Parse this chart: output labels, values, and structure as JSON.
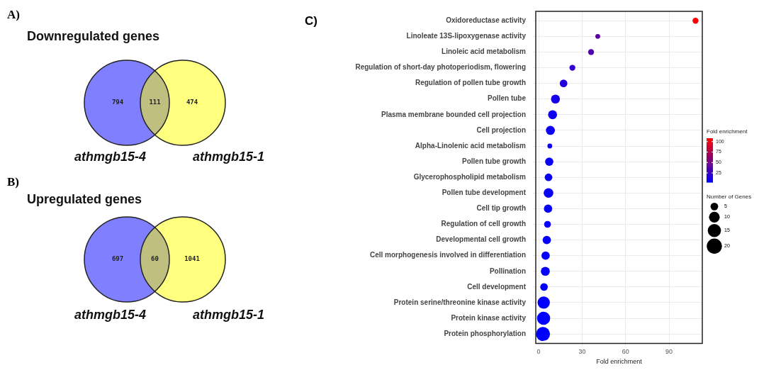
{
  "chart_data": [
    {
      "type": "other",
      "title": "Downregulated genes",
      "annotations": [
        "A)"
      ],
      "categories": [
        "athmgb15-4",
        null,
        "athmgb15-1"
      ],
      "values": [
        794,
        111,
        474
      ],
      "colors": [
        "#7f7fff",
        "#bfbf7f",
        "#ffff7f"
      ],
      "data_labels": true
    },
    {
      "type": "other",
      "title": "Upregulated genes",
      "annotations": [
        "B)"
      ],
      "categories": [
        "athmgb15-4",
        null,
        "athmgb15-1"
      ],
      "values": [
        697,
        60,
        1041
      ],
      "colors": [
        "#7f7fff",
        "#bfbf7f",
        "#ffff7f"
      ],
      "data_labels": true
    },
    {
      "type": "bubble",
      "orientation": "horizontal",
      "annotations": [
        "C)"
      ],
      "categories": [
        "Oxidoreductase activity",
        "Linoleate 13S-lipoxygenase activity",
        "Linoleic acid metabolism",
        "Regulation of short-day photoperiodism, flowering",
        "Regulation of pollen tube growth",
        "Pollen tube",
        "Plasma membrane bounded cell projection",
        "Cell projection",
        "Alpha-Linolenic acid metabolism",
        "Pollen tube growth",
        "Glycerophospholipid metabolism",
        "Pollen tube development",
        "Cell tip growth",
        "Regulation of cell growth",
        "Developmental cell growth",
        "Cell morphogenesis involved in differentiation",
        "Pollination",
        "Cell development",
        "Protein serine/threonine kinase activity",
        "Protein kinase activity",
        "Protein phosphorylation"
      ],
      "values": [
        108.3,
        40.8,
        36.2,
        23.3,
        17.2,
        11.6,
        9.6,
        8.1,
        7.7,
        7.3,
        6.8,
        6.8,
        6.5,
        6.1,
        5.6,
        4.8,
        4.6,
        3.7,
        3.5,
        3.4,
        3.0
      ],
      "sizes": [
        3,
        2,
        3,
        3,
        5,
        7,
        7,
        7,
        2,
        6,
        5,
        8,
        6,
        4,
        6,
        6,
        7,
        5,
        13,
        15,
        17
      ],
      "size_legend": [
        5,
        10,
        15,
        20
      ],
      "cvalues": [
        108.3,
        40.8,
        36.2,
        23.3,
        17.2,
        11.6,
        9.6,
        8.1,
        7.7,
        7.3,
        6.8,
        6.8,
        6.5,
        6.1,
        5.6,
        4.8,
        4.6,
        3.7,
        3.5,
        3.4,
        3.0
      ],
      "clim": [
        3,
        108
      ],
      "cticks": [
        25,
        50,
        75,
        100
      ],
      "clabel": "Fold enrichment",
      "legend_title": "Number of Genes",
      "xlabel": "Fold enrichment",
      "xlim": [
        -2,
        113
      ],
      "xticks": [
        0,
        30,
        60,
        90
      ],
      "grid": true
    }
  ]
}
